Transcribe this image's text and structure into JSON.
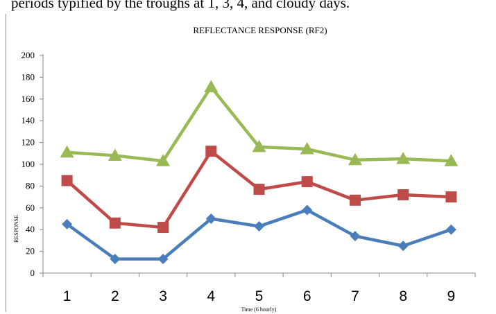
{
  "caption": "periods typified by the troughs at 1, 3, 4, and cloudy days.",
  "chart_data": {
    "type": "line",
    "title": "REFLECTANCE RESPONSE (RF2)",
    "xlabel": "Time (6 hourly)",
    "ylabel": "RESPONSE",
    "x": [
      1,
      2,
      3,
      4,
      5,
      6,
      7,
      8,
      9
    ],
    "ylim": [
      0,
      200
    ],
    "yticks": [
      0,
      20,
      40,
      60,
      80,
      100,
      120,
      140,
      160,
      180,
      200
    ],
    "grid": false,
    "legend": "none",
    "series": [
      {
        "color": "#4a7ebb",
        "marker": "diamond",
        "values": [
          45,
          13,
          13,
          50,
          43,
          58,
          34,
          25,
          40
        ]
      },
      {
        "color": "#be4b48",
        "marker": "square",
        "values": [
          85,
          46,
          42,
          112,
          77,
          84,
          67,
          72,
          70
        ]
      },
      {
        "color": "#98b954",
        "marker": "triangle",
        "values": [
          111,
          108,
          103,
          171,
          116,
          114,
          104,
          105,
          103
        ]
      }
    ]
  }
}
